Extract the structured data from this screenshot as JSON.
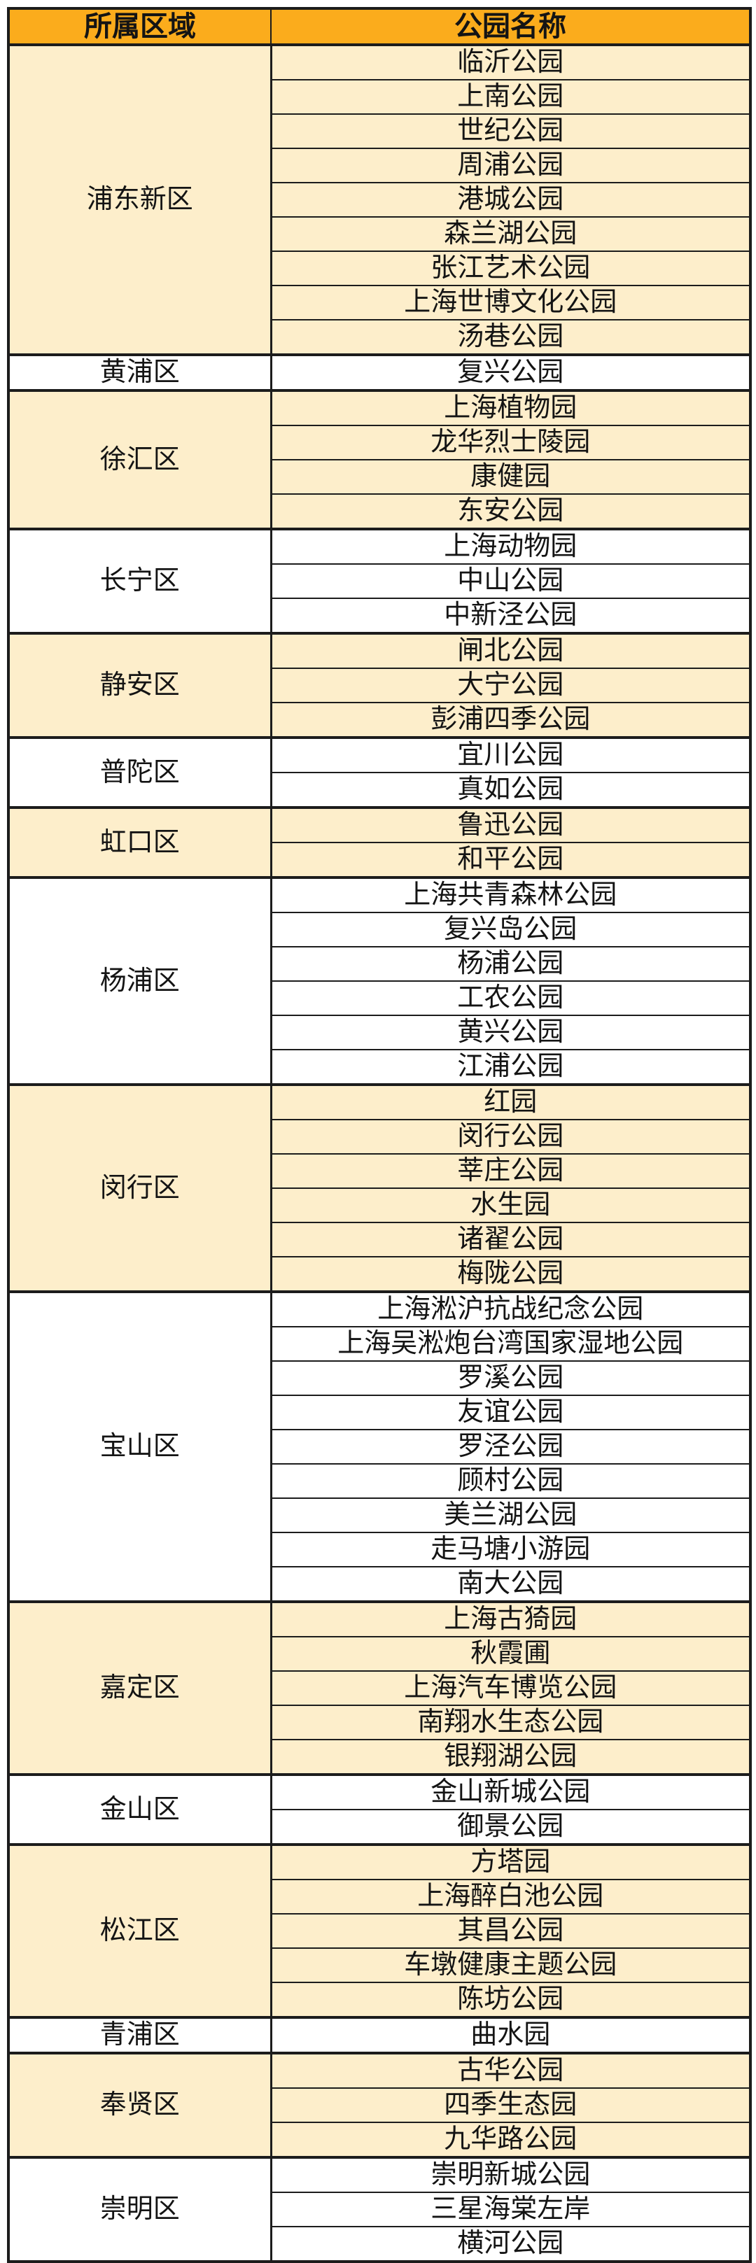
{
  "colors": {
    "header-bg": "#FBAC1C",
    "block-alt-bg": "#FDEECB",
    "block-bg": "#FFFFFF",
    "border-color": "#1C1C1C",
    "text-color": "#141414"
  },
  "table": {
    "headers": [
      "所属区域",
      "公园名称"
    ],
    "districts": [
      {
        "name": "浦东新区",
        "parks": [
          "临沂公园",
          "上南公园",
          "世纪公园",
          "周浦公园",
          "港城公园",
          "森兰湖公园",
          "张江艺术公园",
          "上海世博文化公园",
          "汤巷公园"
        ]
      },
      {
        "name": "黄浦区",
        "parks": [
          "复兴公园"
        ]
      },
      {
        "name": "徐汇区",
        "parks": [
          "上海植物园",
          "龙华烈士陵园",
          "康健园",
          "东安公园"
        ]
      },
      {
        "name": "长宁区",
        "parks": [
          "上海动物园",
          "中山公园",
          "中新泾公园"
        ]
      },
      {
        "name": "静安区",
        "parks": [
          "闸北公园",
          "大宁公园",
          "彭浦四季公园"
        ]
      },
      {
        "name": "普陀区",
        "parks": [
          "宜川公园",
          "真如公园"
        ]
      },
      {
        "name": "虹口区",
        "parks": [
          "鲁迅公园",
          "和平公园"
        ]
      },
      {
        "name": "杨浦区",
        "parks": [
          "上海共青森林公园",
          "复兴岛公园",
          "杨浦公园",
          "工农公园",
          "黄兴公园",
          "江浦公园"
        ]
      },
      {
        "name": "闵行区",
        "parks": [
          "红园",
          "闵行公园",
          "莘庄公园",
          "水生园",
          "诸翟公园",
          "梅陇公园"
        ]
      },
      {
        "name": "宝山区",
        "parks": [
          "上海淞沪抗战纪念公园",
          "上海吴淞炮台湾国家湿地公园",
          "罗溪公园",
          "友谊公园",
          "罗泾公园",
          "顾村公园",
          "美兰湖公园",
          "走马塘小游园",
          "南大公园"
        ]
      },
      {
        "name": "嘉定区",
        "parks": [
          "上海古猗园",
          "秋霞圃",
          "上海汽车博览公园",
          "南翔水生态公园",
          "银翔湖公园"
        ]
      },
      {
        "name": "金山区",
        "parks": [
          "金山新城公园",
          "御景公园"
        ]
      },
      {
        "name": "松江区",
        "parks": [
          "方塔园",
          "上海醉白池公园",
          "其昌公园",
          "车墩健康主题公园",
          "陈坊公园"
        ]
      },
      {
        "name": "青浦区",
        "parks": [
          "曲水园"
        ]
      },
      {
        "name": "奉贤区",
        "parks": [
          "古华公园",
          "四季生态园",
          "九华路公园"
        ]
      },
      {
        "name": "崇明区",
        "parks": [
          "崇明新城公园",
          "三星海棠左岸",
          "横河公园"
        ]
      }
    ]
  }
}
